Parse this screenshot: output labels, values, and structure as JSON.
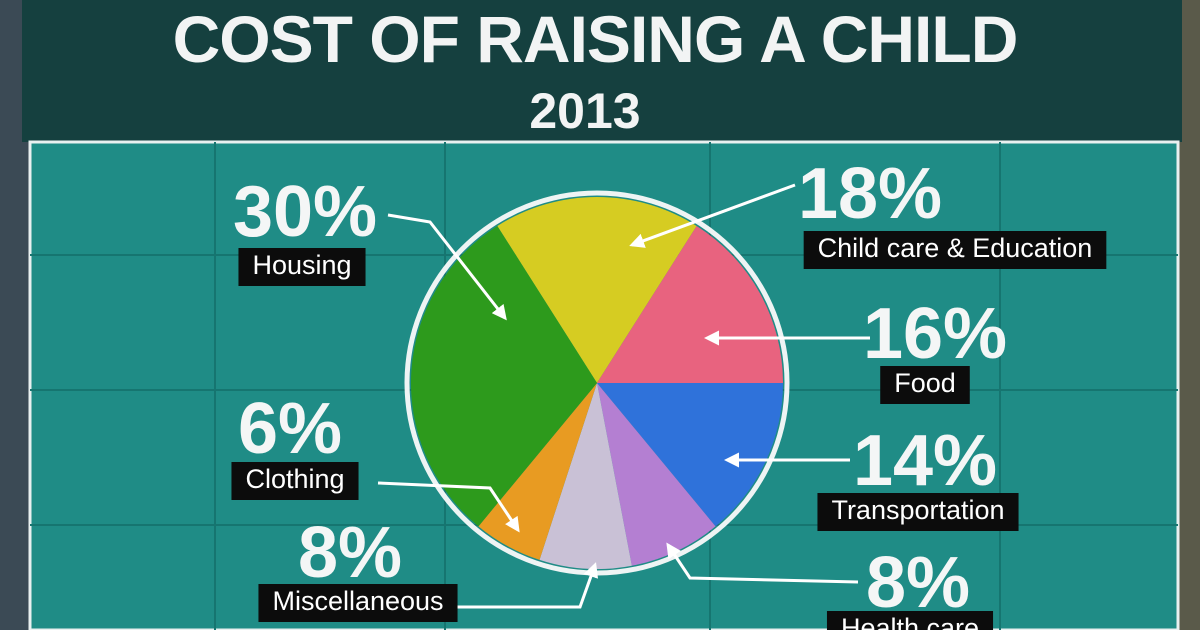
{
  "chart_data": {
    "type": "pie",
    "title": "COST OF RAISING A CHILD",
    "subtitle": "2013",
    "categories": [
      "Child care & Education",
      "Food",
      "Transportation",
      "Health care",
      "Miscellaneous",
      "Clothing",
      "Housing"
    ],
    "values": [
      18,
      16,
      14,
      8,
      8,
      6,
      30
    ],
    "value_labels": [
      "18%",
      "16%",
      "14%",
      "8%",
      "8%",
      "6%",
      "30%"
    ],
    "colors": [
      "#d6cc22",
      "#e8637f",
      "#2f72da",
      "#b47fd2",
      "#c9c1d6",
      "#e89b22",
      "#2d9a1c"
    ]
  }
}
